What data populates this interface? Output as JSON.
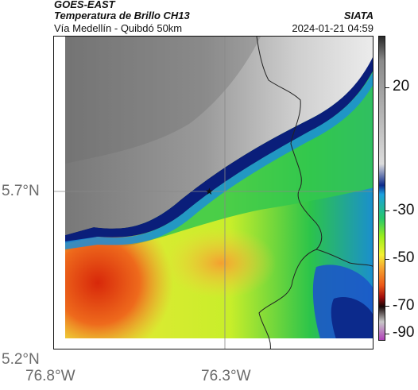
{
  "header": {
    "satellite": "GOES-EAST",
    "product": "Temperatura de Brillo CH13",
    "route": "Vía Medellín - Quibdó 50km",
    "org": "SIATA",
    "timestamp": "2024-01-21 04:59"
  },
  "axes": {
    "lat_labels": [
      "5.7°N",
      "5.2°N"
    ],
    "lon_labels": [
      "76.8°W",
      "76.3°W"
    ]
  },
  "colorbar": {
    "labels": [
      "20",
      "-30",
      "-50",
      "-70",
      "-90"
    ],
    "colors": [
      "#2a2a2a",
      "#8a8a8a",
      "#dcdcdc",
      "#0c2a8c",
      "#1ca0e0",
      "#26c86a",
      "#9bef1a",
      "#f4f032",
      "#f6a832",
      "#ec5818",
      "#a00c0c",
      "#160606",
      "#c8c8c8",
      "#b040b8"
    ]
  },
  "map": {
    "marker_icon": "star-marker-icon",
    "colors": {
      "cloud_light": "#e2e2e2",
      "cloud_dark": "#6e6e6e",
      "cloud_edge": "#0a1e7a",
      "cold_blue": "#1a6be0",
      "green": "#22b84a",
      "lime": "#86e02a",
      "yellow": "#e8f040",
      "orange": "#f2a030",
      "red": "#e04010",
      "border_line": "#222222"
    }
  }
}
